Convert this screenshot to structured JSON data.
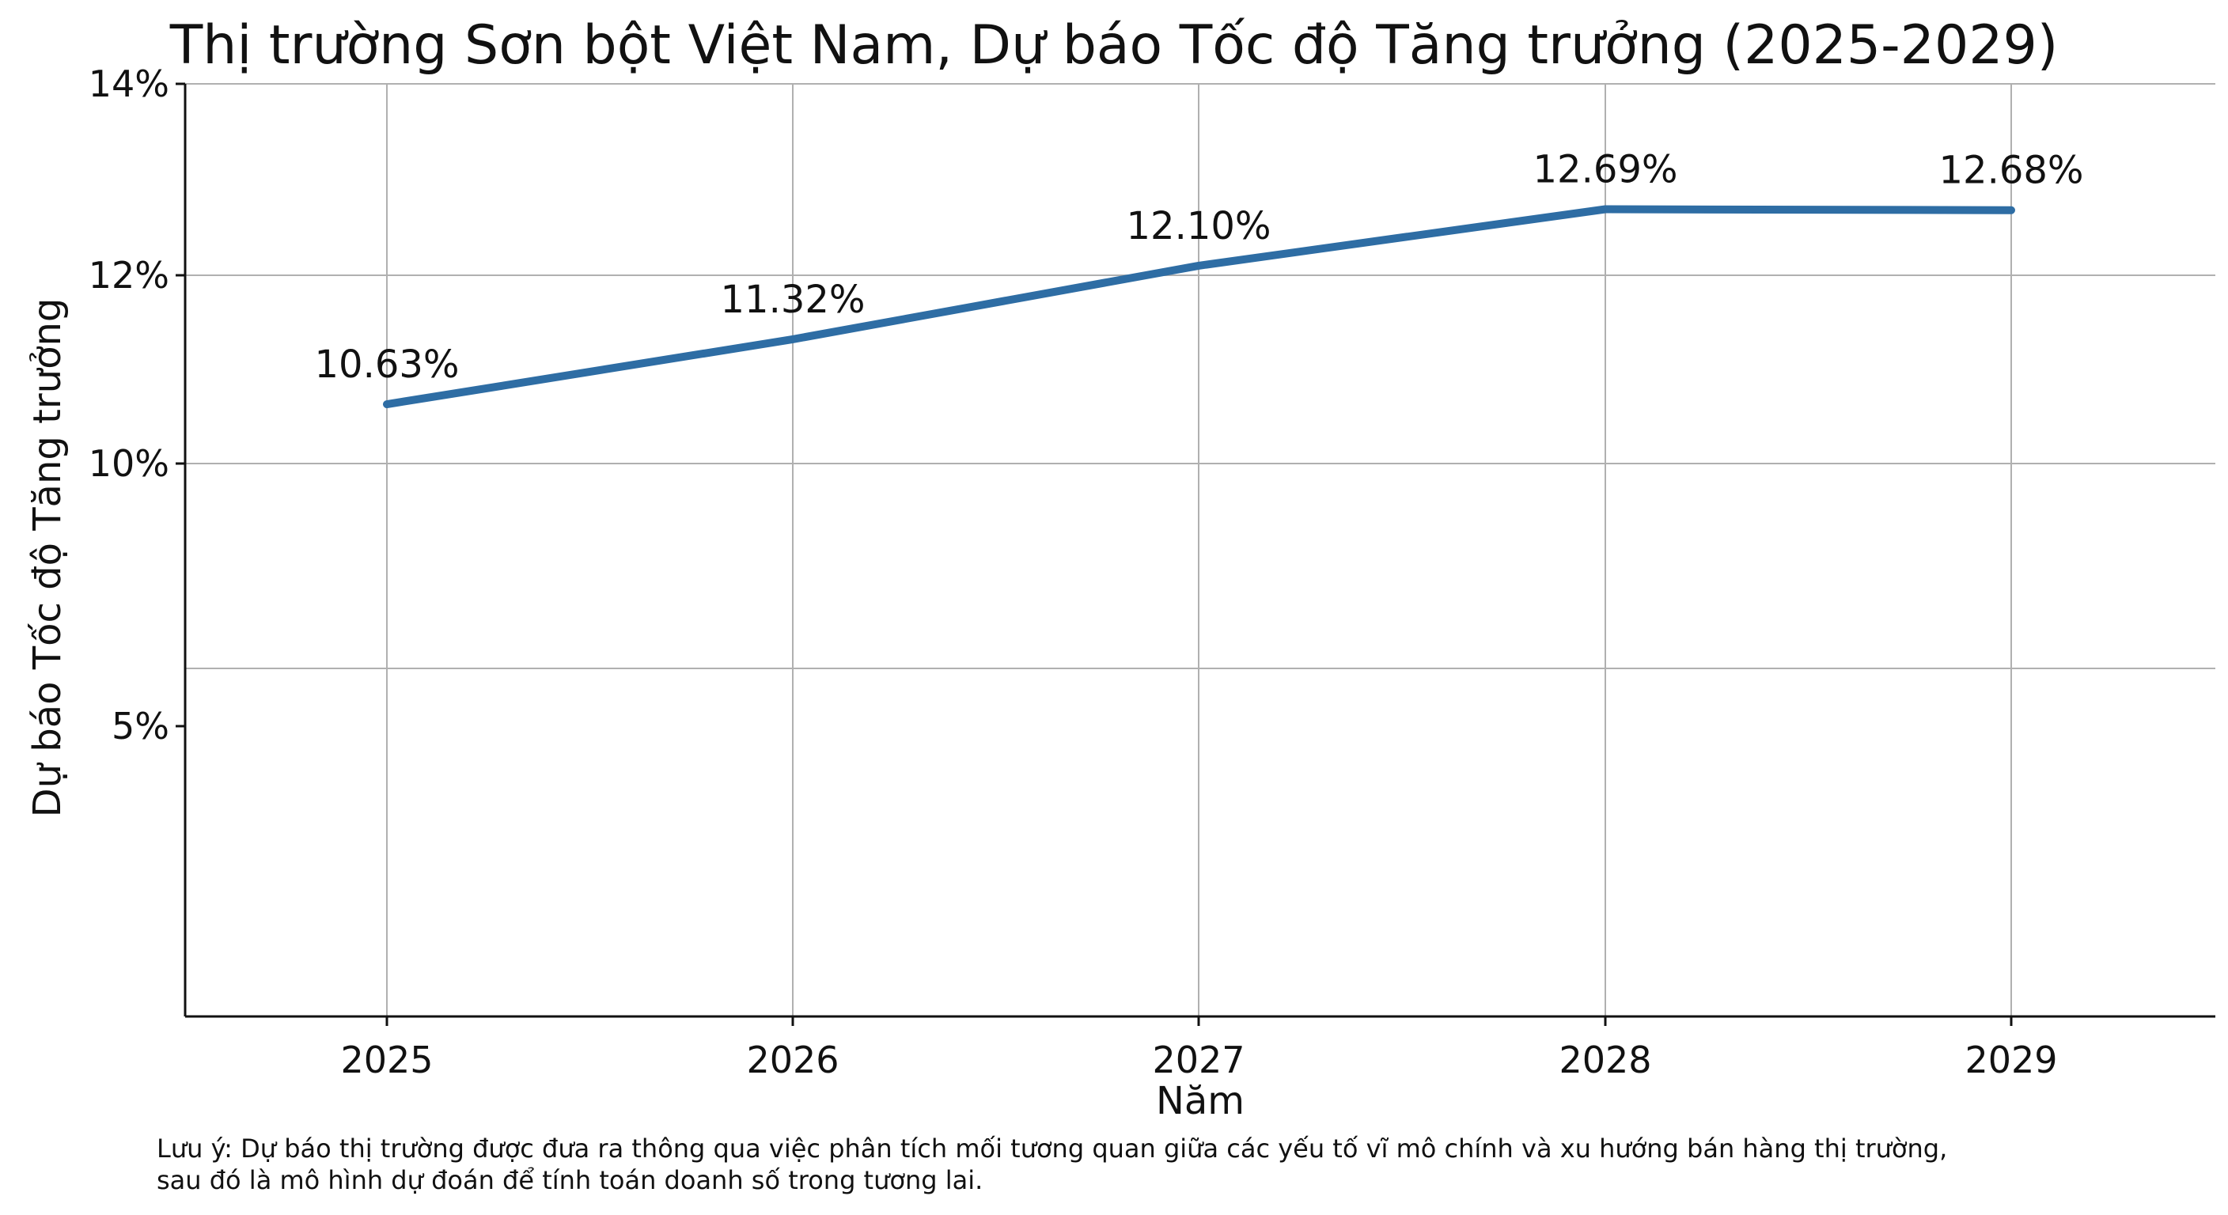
{
  "chart_data": {
    "type": "line",
    "title": "Thị trường Sơn bột Việt Nam, Dự báo Tốc độ Tăng trưởng (2025-2029)",
    "xlabel": "Năm",
    "ylabel": "Dự báo Tốc độ Tăng trưởng",
    "categories": [
      "2025",
      "2026",
      "2027",
      "2028",
      "2029"
    ],
    "values": [
      10.63,
      11.32,
      12.1,
      12.69,
      12.68
    ],
    "data_labels": [
      "10.63%",
      "11.32%",
      "12.10%",
      "12.69%",
      "12.68%"
    ],
    "y_ticks": [
      {
        "value": 5,
        "label": "5%"
      },
      {
        "value": 10,
        "label": "10%"
      },
      {
        "value": 12,
        "label": "12%"
      },
      {
        "value": 14,
        "label": "14%"
      }
    ],
    "y_gridlines": [
      7.5,
      10,
      12,
      14
    ],
    "ylim": [
      0,
      14
    ],
    "y_scale": "piecewise-linear",
    "grid": true,
    "line_color": "#2e6da4"
  },
  "note": {
    "line1": "Lưu ý: Dự báo thị trường được đưa ra thông qua việc phân tích mối tương quan giữa các yếu tố vĩ mô chính và xu hướng bán hàng thị trường,",
    "line2": "sau đó là mô hình dự đoán để tính toán doanh số trong tương lai."
  }
}
